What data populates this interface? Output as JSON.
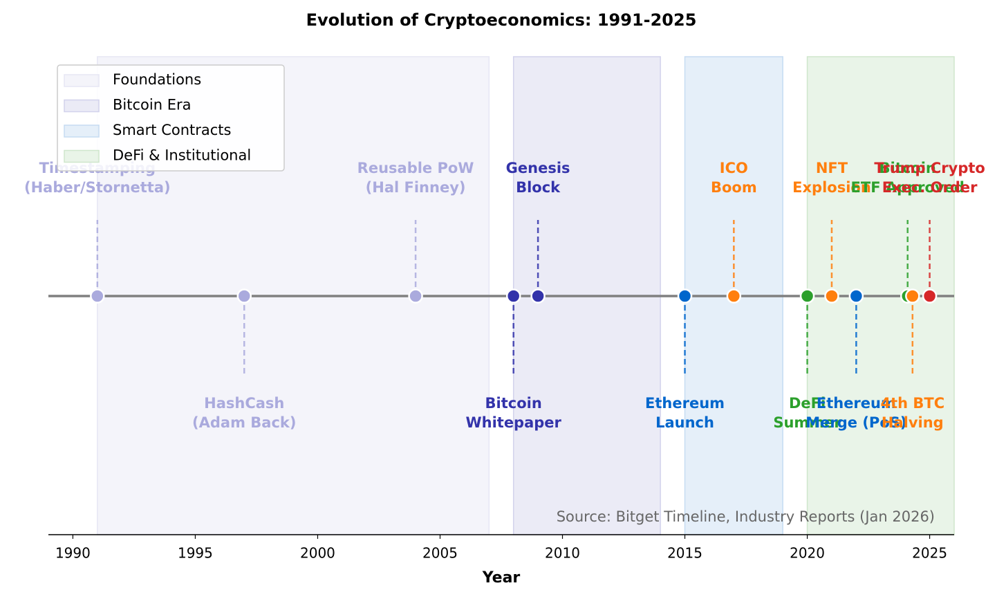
{
  "chart_data": {
    "type": "timeline",
    "title": "Evolution of Cryptoeconomics: 1991-2025",
    "x_label": "Year",
    "annotation": "Source: Bitget Timeline, Industry Reports (Jan 2026)",
    "xlim": [
      1989,
      2026
    ],
    "xticks": [
      1990,
      1995,
      2000,
      2005,
      2010,
      2015,
      2020,
      2025
    ],
    "legend": "upper left",
    "eras": [
      {
        "name": "Foundations",
        "start": 1991,
        "end": 2007,
        "color": "#e6e6f4"
      },
      {
        "name": "Bitcoin Era",
        "start": 2008,
        "end": 2014,
        "color": "#d2d2ec"
      },
      {
        "name": "Smart Contracts",
        "start": 2015,
        "end": 2019,
        "color": "#c6dcf2"
      },
      {
        "name": "DeFi & Institutional",
        "start": 2020,
        "end": 2026,
        "color": "#cfe6cc"
      }
    ],
    "events": [
      {
        "x": 1991,
        "label": [
          "Timestamping",
          "(Haber/Stornetta)"
        ],
        "color": "#aaaadd",
        "side": "above"
      },
      {
        "x": 1997,
        "label": [
          "HashCash",
          "(Adam Back)"
        ],
        "color": "#aaaadd",
        "side": "below"
      },
      {
        "x": 2004,
        "label": [
          "Reusable PoW",
          "(Hal Finney)"
        ],
        "color": "#aaaadd",
        "side": "above"
      },
      {
        "x": 2008,
        "label": [
          "Bitcoin",
          "Whitepaper"
        ],
        "color": "#3333aa",
        "side": "below"
      },
      {
        "x": 2009,
        "label": [
          "Genesis",
          "Block"
        ],
        "color": "#3333aa",
        "side": "above"
      },
      {
        "x": 2015,
        "label": [
          "Ethereum",
          "Launch"
        ],
        "color": "#0066cc",
        "side": "below"
      },
      {
        "x": 2017,
        "label": [
          "ICO",
          "Boom"
        ],
        "color": "#ff7f0e",
        "side": "above"
      },
      {
        "x": 2020,
        "label": [
          "DeFi",
          "Summer"
        ],
        "color": "#2ca02c",
        "side": "below"
      },
      {
        "x": 2021,
        "label": [
          "NFT",
          "Explosion"
        ],
        "color": "#ff7f0e",
        "side": "above"
      },
      {
        "x": 2022,
        "label": [
          "Ethereum",
          "Merge (PoS)"
        ],
        "color": "#0066cc",
        "side": "below"
      },
      {
        "x": 2024.1,
        "label": [
          "Bitcoin",
          "ETF Approved"
        ],
        "color": "#2ca02c",
        "side": "above"
      },
      {
        "x": 2024.3,
        "label": [
          "4th BTC",
          "Halving"
        ],
        "color": "#ff7f0e",
        "side": "below"
      },
      {
        "x": 2025,
        "label": [
          "Trump Crypto",
          "Exec. Order"
        ],
        "color": "#d62728",
        "side": "above"
      }
    ]
  }
}
